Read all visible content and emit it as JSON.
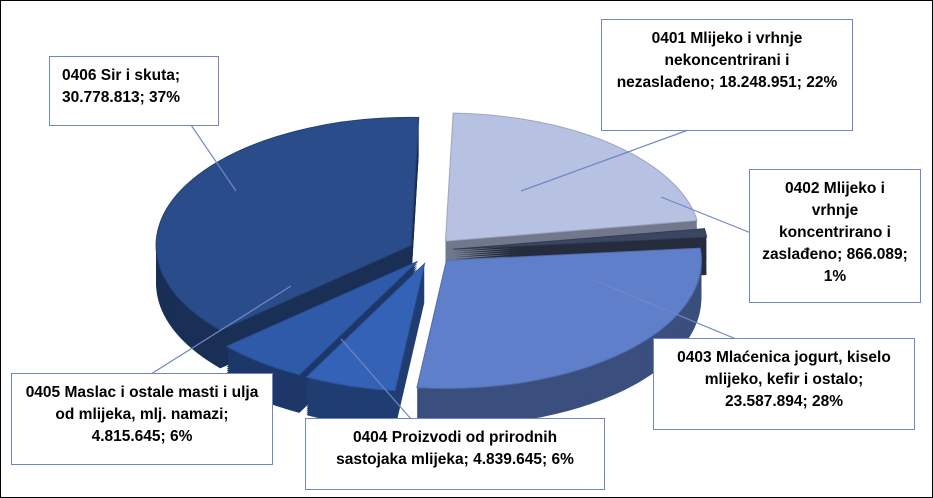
{
  "chart_data": {
    "type": "pie",
    "categories": [
      "0401 Mlijeko i vrhnje nekoncentrirani i nezaslađeno",
      "0402 Mlijeko i vrhnje koncentrirano i zaslađeno",
      "0403 Mlaćenica jogurt, kiselo mlijeko, kefir i ostalo",
      "0404 Proizvodi od prirodnih sastojaka mlijeka",
      "0405 Maslac i ostale masti i ulja od mlijeka, mlj. namazi",
      "0406 Sir i skuta"
    ],
    "values": [
      18248951,
      866089,
      23587894,
      4839645,
      4815645,
      30778813
    ],
    "value_labels": [
      "18.248.951",
      "866.089",
      "23.587.894",
      "4.839.645",
      "4.815.645",
      "30.778.813"
    ],
    "percents": [
      22,
      1,
      28,
      6,
      6,
      37
    ],
    "percent_labels": [
      "22%",
      "1%",
      "28%",
      "6%",
      "6%",
      "37%"
    ],
    "label_separator": "; ",
    "colors": [
      "#b7c2e2",
      "#3b4762",
      "#5f7fcb",
      "#3462b6",
      "#2f59a9",
      "#2a4c8a"
    ]
  }
}
